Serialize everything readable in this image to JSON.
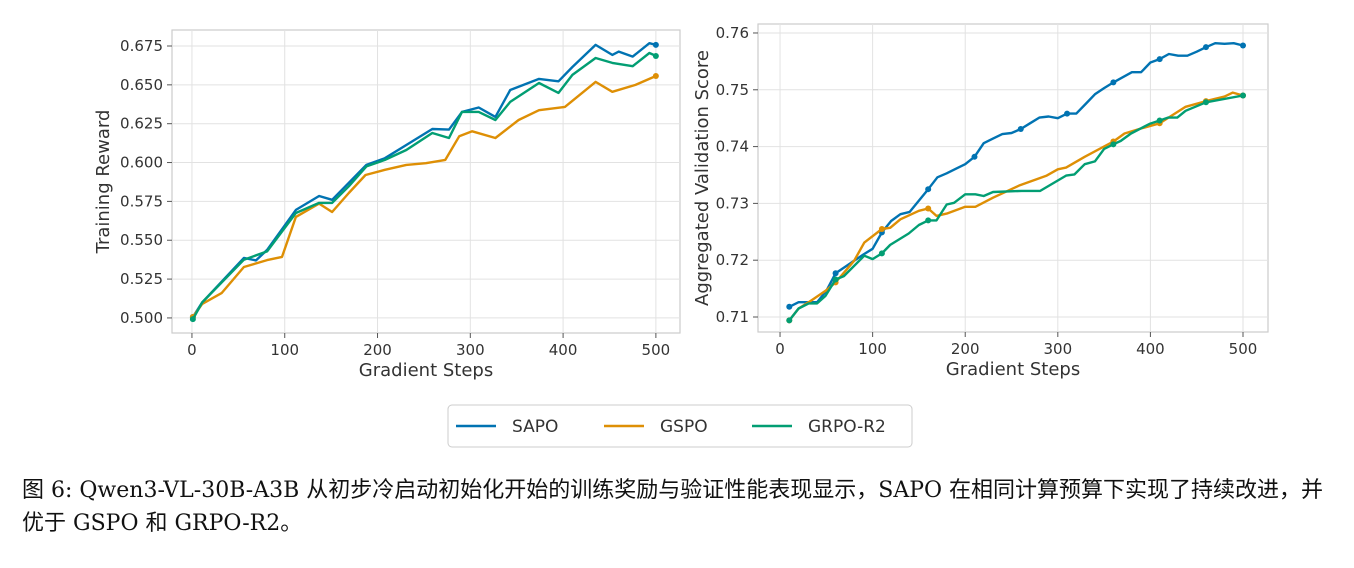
{
  "colors": {
    "SAPO": "#0173b2",
    "GSPO": "#de8f05",
    "GRPO-R2": "#029e73"
  },
  "legend": [
    "SAPO",
    "GSPO",
    "GRPO-R2"
  ],
  "caption": "图 6: Qwen3-VL-30B-A3B 从初步冷启动初始化开始的训练奖励与验证性能表现显示，SAPO 在相同计算预算下实现了持续改进，并优于 GSPO 和 GRPO-R2。",
  "chart_data": [
    {
      "type": "line",
      "title": "",
      "xlabel": "Gradient Steps",
      "ylabel": "Training Reward",
      "xlim": [
        -21.5,
        526
      ],
      "ylim": [
        0.4903,
        0.6853
      ],
      "xticks": [
        0,
        100,
        200,
        300,
        400,
        500
      ],
      "yticks": [
        0.5,
        0.525,
        0.55,
        0.575,
        0.6,
        0.625,
        0.65,
        0.675
      ],
      "ytick_decimals": 3,
      "grid": true,
      "markers": "endpoints",
      "series": [
        {
          "name": "SAPO",
          "x": [
            1,
            11,
            56,
            69,
            81,
            112,
            137,
            151,
            169,
            188,
            208,
            231,
            259,
            277,
            291,
            309,
            327,
            343,
            374,
            395,
            410,
            435,
            453,
            460,
            475,
            493,
            500
          ],
          "y": [
            0.5006,
            0.51,
            0.5386,
            0.537,
            0.5438,
            0.5695,
            0.5785,
            0.576,
            0.5869,
            0.5985,
            0.6028,
            0.6113,
            0.6216,
            0.6212,
            0.6326,
            0.6354,
            0.6294,
            0.6467,
            0.6538,
            0.6523,
            0.6615,
            0.6757,
            0.6693,
            0.6714,
            0.6682,
            0.6768,
            0.6757
          ]
        },
        {
          "name": "GSPO",
          "x": [
            1,
            11,
            32,
            56,
            81,
            97,
            112,
            137,
            151,
            169,
            187,
            208,
            231,
            252,
            273,
            288,
            302,
            327,
            352,
            374,
            402,
            435,
            453,
            478,
            500
          ],
          "y": [
            0.5006,
            0.509,
            0.516,
            0.5328,
            0.5372,
            0.5393,
            0.565,
            0.5736,
            0.5682,
            0.5804,
            0.592,
            0.5953,
            0.5985,
            0.5996,
            0.6017,
            0.6169,
            0.6201,
            0.6158,
            0.6274,
            0.6337,
            0.6358,
            0.6519,
            0.6455,
            0.65,
            0.6557
          ]
        },
        {
          "name": "GRPO-R2",
          "x": [
            1,
            11,
            56,
            81,
            112,
            137,
            151,
            169,
            188,
            208,
            231,
            259,
            277,
            291,
            309,
            327,
            343,
            374,
            395,
            410,
            435,
            453,
            475,
            493,
            500
          ],
          "y": [
            0.4992,
            0.51,
            0.5375,
            0.5428,
            0.5675,
            0.574,
            0.574,
            0.5847,
            0.5975,
            0.6017,
            0.6081,
            0.619,
            0.6158,
            0.6326,
            0.6326,
            0.6274,
            0.639,
            0.6512,
            0.6448,
            0.6564,
            0.6673,
            0.6641,
            0.662,
            0.6705,
            0.6686
          ]
        }
      ]
    },
    {
      "type": "line",
      "title": "",
      "xlabel": "Gradient Steps",
      "ylabel": "Aggregated Validation Score",
      "xlim": [
        -23.8,
        527
      ],
      "ylim": [
        0.70736,
        0.76158
      ],
      "xticks": [
        0,
        100,
        200,
        300,
        400,
        500
      ],
      "yticks": [
        0.71,
        0.72,
        0.73,
        0.74,
        0.75,
        0.76
      ],
      "ytick_decimals": 2,
      "grid": true,
      "markers": "every-50",
      "series": [
        {
          "name": "SAPO",
          "x": [
            10,
            20,
            30,
            40,
            50,
            60,
            70,
            80,
            90,
            100,
            110,
            120,
            130,
            140,
            150,
            160,
            170,
            180,
            190,
            200,
            210,
            220,
            230,
            240,
            250,
            260,
            270,
            280,
            290,
            300,
            310,
            320,
            330,
            340,
            350,
            360,
            370,
            380,
            390,
            400,
            410,
            420,
            430,
            440,
            450,
            460,
            470,
            480,
            490,
            500
          ],
          "y": [
            0.7118,
            0.7126,
            0.7126,
            0.7126,
            0.7146,
            0.7177,
            0.7188,
            0.7199,
            0.721,
            0.722,
            0.7249,
            0.7269,
            0.7281,
            0.7285,
            0.7305,
            0.7325,
            0.7346,
            0.7353,
            0.7361,
            0.7369,
            0.7382,
            0.7406,
            0.7414,
            0.7422,
            0.7424,
            0.7431,
            0.7441,
            0.7451,
            0.7453,
            0.745,
            0.7458,
            0.7458,
            0.7475,
            0.7492,
            0.7503,
            0.7513,
            0.7522,
            0.7531,
            0.7531,
            0.7548,
            0.7554,
            0.7563,
            0.756,
            0.756,
            0.7567,
            0.7575,
            0.7582,
            0.7581,
            0.7582,
            0.7578
          ]
        },
        {
          "name": "GSPO",
          "x": [
            10,
            20,
            31,
            49,
            60,
            80,
            91,
            110,
            119,
            130,
            150,
            160,
            169,
            180,
            200,
            211,
            230,
            259,
            288,
            300,
            309,
            329,
            360,
            372,
            388,
            410,
            438,
            460,
            480,
            489,
            500
          ],
          "y": [
            0.7094,
            0.7115,
            0.7126,
            0.7146,
            0.7161,
            0.7199,
            0.7231,
            0.7255,
            0.7257,
            0.7272,
            0.7287,
            0.7291,
            0.7278,
            0.7282,
            0.7294,
            0.7294,
            0.731,
            0.7332,
            0.7349,
            0.736,
            0.7363,
            0.7382,
            0.7409,
            0.7423,
            0.7431,
            0.7441,
            0.747,
            0.748,
            0.7488,
            0.7495,
            0.749
          ]
        },
        {
          "name": "GRPO-R2",
          "x": [
            10,
            20,
            31,
            40,
            49,
            60,
            69,
            91,
            100,
            110,
            119,
            139,
            150,
            160,
            169,
            180,
            188,
            200,
            211,
            220,
            230,
            261,
            281,
            309,
            318,
            329,
            340,
            350,
            360,
            368,
            379,
            399,
            410,
            419,
            429,
            438,
            460,
            500
          ],
          "y": [
            0.7094,
            0.7115,
            0.7124,
            0.7124,
            0.7137,
            0.7166,
            0.7172,
            0.7208,
            0.7202,
            0.7212,
            0.7227,
            0.7247,
            0.7262,
            0.727,
            0.727,
            0.7298,
            0.7301,
            0.7316,
            0.7316,
            0.7313,
            0.732,
            0.7322,
            0.7322,
            0.7349,
            0.7351,
            0.7369,
            0.7374,
            0.7396,
            0.7404,
            0.741,
            0.7423,
            0.744,
            0.7446,
            0.7451,
            0.7451,
            0.7463,
            0.7478,
            0.749
          ]
        }
      ]
    }
  ]
}
